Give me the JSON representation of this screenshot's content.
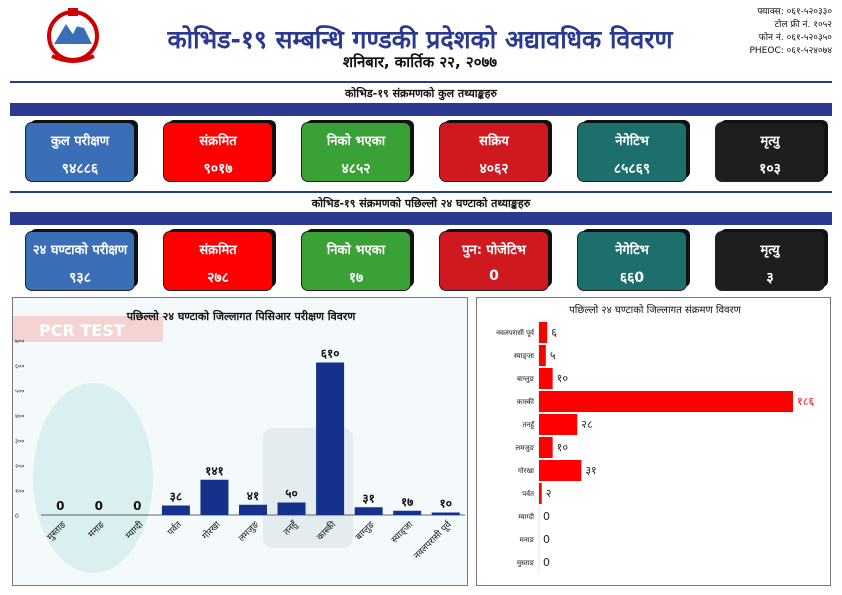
{
  "header": {
    "title": "कोभिड-१९ सम्बन्धि गण्डकी प्रदेशको अद्यावधिक विवरण",
    "date": "शनिबार, कार्तिक २२, २०७७",
    "contact": [
      "फ्याक्स: ०६१-५२०३३०",
      "टोल फ्री नं. १०५२",
      "फोन नं. ०६१-५२०३५०",
      "PHEOC: ०६१-५२४०७४"
    ]
  },
  "total": {
    "title": "कोभिड-१९ संक्रमणको कुल तथ्याङ्कहरु",
    "boxes": [
      {
        "label": "कुल परीक्षण",
        "value": "९४८८६",
        "color": "#3a6fb8"
      },
      {
        "label": "संक्रमित",
        "value": "९०१७",
        "color": "#ff0000"
      },
      {
        "label": "निको भएका",
        "value": "४८५२",
        "color": "#3aa136"
      },
      {
        "label": "सक्रिय",
        "value": "४०६२",
        "color": "#d0191f"
      },
      {
        "label": "नेगेटिभ",
        "value": "८५८६९",
        "color": "#1c6f6c"
      },
      {
        "label": "मृत्यु",
        "value": "१०३",
        "color": "#1e1e1e"
      }
    ]
  },
  "last24": {
    "title": "कोभिड-१९ संक्रमणको पछिल्लो २४ घण्टाको तथ्याङ्कहरु",
    "boxes": [
      {
        "label": "२४ घण्टाको परीक्षण",
        "value": "९३८",
        "color": "#3a6fb8"
      },
      {
        "label": "संक्रमित",
        "value": "२७८",
        "color": "#ff0000"
      },
      {
        "label": "निको भएका",
        "value": "१७",
        "color": "#3aa136"
      },
      {
        "label": "पुन: पोजेटिभ",
        "value": "0",
        "color": "#d0191f"
      },
      {
        "label": "नेगेटिभ",
        "value": "६६0",
        "color": "#1c6f6c"
      },
      {
        "label": "मृत्यु",
        "value": "३",
        "color": "#1e1e1e"
      }
    ]
  },
  "chart_data": [
    {
      "type": "bar",
      "title": "पछिल्लो २४ घण्टाको जिल्लागत पिसिआर परीक्षण विवरण",
      "watermark": "PCR TEST",
      "categories": [
        "मुस्ताङ",
        "मनाङ",
        "म्याग्दी",
        "पर्वत",
        "गोरखा",
        "लमजुङ",
        "तनहुँ",
        "कास्की",
        "बाग्लुङ",
        "स्याङ्जा",
        "नवलपरासी पूर्व"
      ],
      "values": [
        0,
        0,
        0,
        38,
        141,
        41,
        50,
        610,
        31,
        17,
        10
      ],
      "value_labels": [
        "0",
        "0",
        "0",
        "३८",
        "१४१",
        "४१",
        "५०",
        "६१०",
        "३१",
        "१७",
        "१०"
      ],
      "yticks": [
        "0",
        "१००",
        "२००",
        "३००",
        "४००",
        "५००",
        "६००",
        "७००"
      ],
      "ylim": [
        0,
        700
      ],
      "color": "#14328c",
      "grid": false
    },
    {
      "type": "bar",
      "orientation": "horizontal",
      "title": "पछिल्लो २४ घण्टाको जिल्लागत संक्रमण विवरण",
      "categories": [
        "नवलपरासी पूर्व",
        "स्याङ्जा",
        "बाग्लुङ",
        "कास्की",
        "तनहुँ",
        "लमजुङ",
        "गोरखा",
        "पर्वत",
        "म्याग्दी",
        "मनाङ",
        "मुस्ताङ"
      ],
      "values": [
        6,
        5,
        10,
        186,
        28,
        10,
        31,
        2,
        0,
        0,
        0
      ],
      "value_labels": [
        "६",
        "५",
        "१०",
        "१८६",
        "२८",
        "१०",
        "३१",
        "२",
        "0",
        "0",
        "0"
      ],
      "color": "#ff0000",
      "grid": false
    }
  ]
}
